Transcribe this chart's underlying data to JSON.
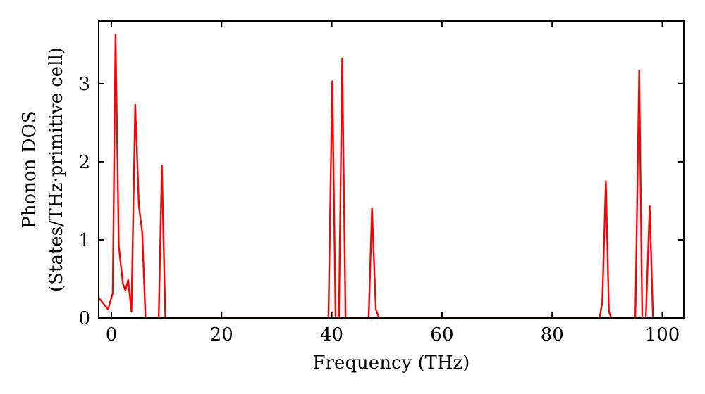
{
  "chart_data": {
    "type": "line",
    "xlabel": "Frequency (THz)",
    "ylabel": "Phonon DOS\n(States/THz·primitive cell)",
    "x": [
      -2.3,
      -0.6,
      0.25,
      0.76,
      1.35,
      2.1,
      2.55,
      3.05,
      3.65,
      4.33,
      5.0,
      5.6,
      6.2,
      8.6,
      9.16,
      9.8,
      39.4,
      40.1,
      40.7,
      41.3,
      41.9,
      42.5,
      46.7,
      47.3,
      48.0,
      48.6,
      88.6,
      89.1,
      89.75,
      90.3,
      90.75,
      95.1,
      95.8,
      96.35,
      97.0,
      97.7,
      98.3
    ],
    "series": [
      {
        "color": "#ff0000",
        "values": [
          0.26,
          0.11,
          0.32,
          3.63,
          0.92,
          0.44,
          0.35,
          0.49,
          0.08,
          2.73,
          1.43,
          1.1,
          0,
          0,
          1.95,
          0,
          0,
          3.03,
          0,
          0,
          3.32,
          0,
          0,
          1.4,
          0.11,
          0,
          0,
          0.2,
          1.75,
          0.08,
          0,
          0,
          3.17,
          0,
          0,
          1.43,
          0
        ]
      }
    ],
    "xlim": [
      -2.3,
      103.9
    ],
    "ylim": [
      0,
      3.8
    ],
    "xticks": [
      0,
      20,
      40,
      60,
      80,
      100
    ],
    "yticks": [
      0,
      1,
      2,
      3
    ],
    "grid": false,
    "marker": "none",
    "line_style": "solid"
  }
}
